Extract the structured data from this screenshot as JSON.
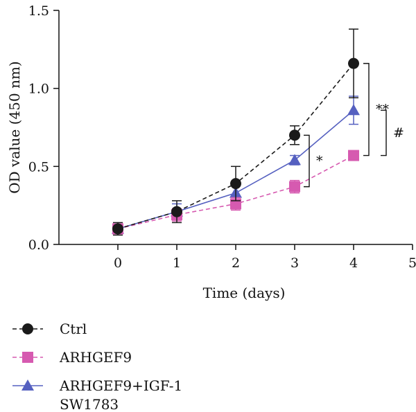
{
  "chart_data": {
    "type": "line",
    "xlabel": "Time (days)",
    "ylabel": "OD value (450 nm)",
    "xlim": [
      -1,
      5
    ],
    "ylim": [
      0,
      1.5
    ],
    "x_ticks": [
      "0",
      "1",
      "2",
      "3",
      "4",
      "5"
    ],
    "y_ticks": [
      "0.0",
      "0.5",
      "1.0",
      "1.5"
    ],
    "x": [
      0,
      1,
      2,
      3,
      4
    ],
    "grid": false,
    "legend_position": "bottom-left",
    "series": [
      {
        "name": "Ctrl",
        "values": [
          0.1,
          0.21,
          0.39,
          0.7,
          1.16
        ],
        "errors": [
          0.04,
          0.07,
          0.11,
          0.06,
          0.22
        ],
        "color": "#1a1a1a",
        "marker": "circle",
        "dashed": true
      },
      {
        "name": "ARHGEF9",
        "values": [
          0.1,
          0.19,
          0.26,
          0.37,
          0.57
        ],
        "errors": [
          0.03,
          0.04,
          0.04,
          0.04,
          0.03
        ],
        "color": "#d65ab0",
        "marker": "square",
        "dashed": true
      },
      {
        "name": "ARHGEF9+IGF-1",
        "values": [
          0.1,
          0.21,
          0.33,
          0.54,
          0.86
        ],
        "errors": [
          0.03,
          0.05,
          0.05,
          0.03,
          0.09
        ],
        "color": "#5560c0",
        "marker": "triangle",
        "dashed": false
      }
    ],
    "annotations": [
      {
        "text": "**",
        "compare": [
          "Ctrl",
          "ARHGEF9"
        ],
        "at_x": 4
      },
      {
        "text": "#",
        "compare": [
          "ARHGEF9+IGF-1",
          "ARHGEF9"
        ],
        "at_x": 4
      },
      {
        "text": "*",
        "compare": [
          "Ctrl",
          "ARHGEF9"
        ],
        "at_x": 3
      }
    ],
    "legend_subtitle": "SW1783"
  }
}
